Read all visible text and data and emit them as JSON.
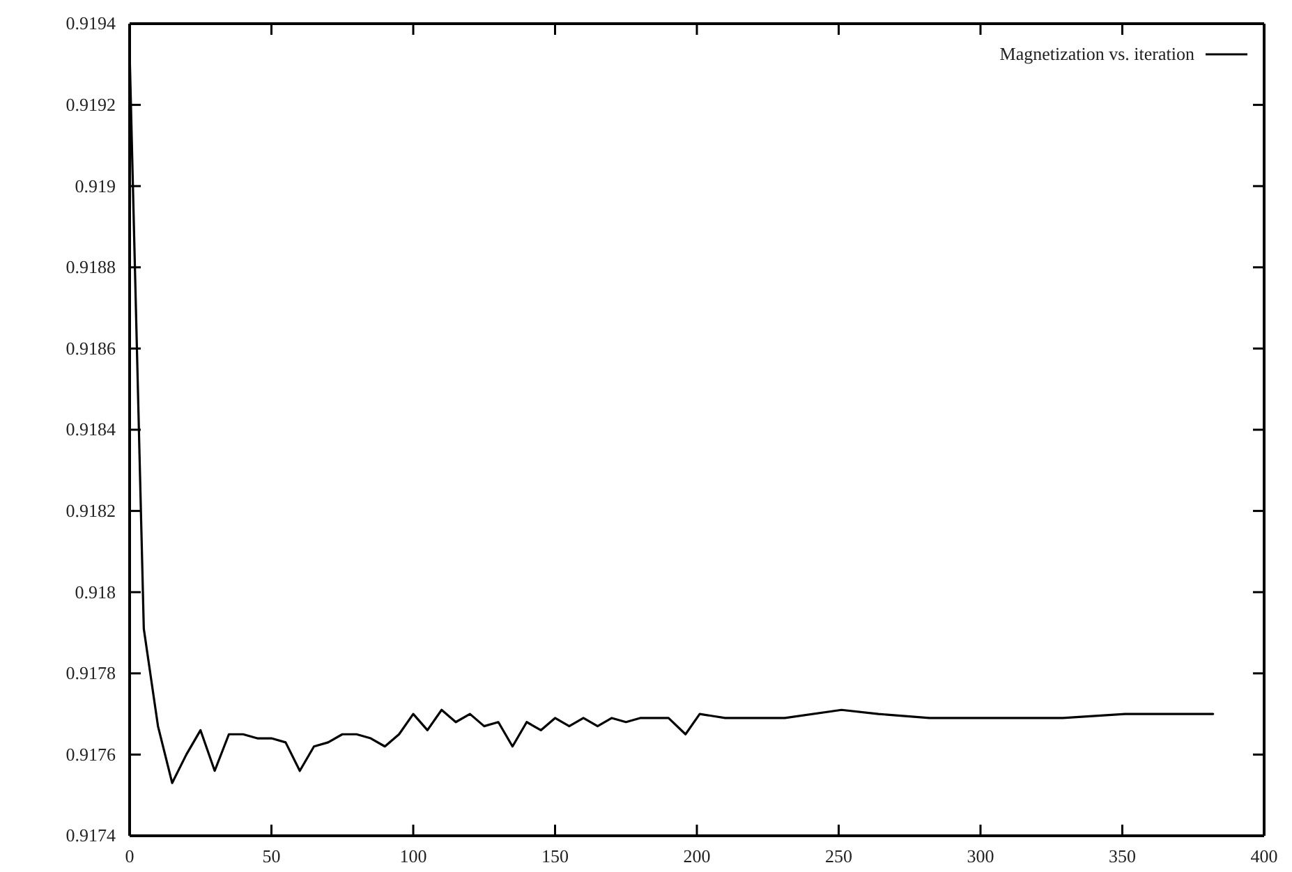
{
  "chart_data": {
    "type": "line",
    "legend": "top right",
    "grid": false,
    "line_style": "solid",
    "marker": "none",
    "xlim": [
      0,
      400
    ],
    "xticks": [
      0,
      50,
      100,
      150,
      200,
      250,
      300,
      350,
      400
    ],
    "ylim": [
      0.9174,
      0.9194
    ],
    "yticks": [
      0.9174,
      0.9176,
      0.9178,
      0.918,
      0.9182,
      0.9184,
      0.9186,
      0.9188,
      0.919,
      0.9192,
      0.9194
    ],
    "series": [
      {
        "name": "Magnetization vs. iteration",
        "color": "#000000",
        "x": [
          0,
          5,
          10,
          15,
          20,
          25,
          30,
          35,
          40,
          45,
          50,
          55,
          60,
          65,
          70,
          75,
          80,
          85,
          90,
          95,
          100,
          105,
          110,
          115,
          120,
          125,
          130,
          135,
          140,
          145,
          150,
          155,
          160,
          165,
          170,
          175,
          180,
          190,
          196,
          201,
          210,
          231,
          251,
          264,
          282,
          305,
          329,
          351,
          382
        ],
        "values": [
          0.91933,
          0.91791,
          0.91767,
          0.91753,
          0.9176,
          0.91766,
          0.91756,
          0.91765,
          0.91765,
          0.91764,
          0.91764,
          0.91763,
          0.91756,
          0.91762,
          0.91763,
          0.91765,
          0.91765,
          0.91764,
          0.91762,
          0.91765,
          0.9177,
          0.91766,
          0.91771,
          0.91768,
          0.9177,
          0.91767,
          0.91768,
          0.91762,
          0.91768,
          0.91766,
          0.91769,
          0.91767,
          0.91769,
          0.91767,
          0.91769,
          0.91768,
          0.91769,
          0.91769,
          0.91765,
          0.9177,
          0.91769,
          0.91769,
          0.91771,
          0.9177,
          0.91769,
          0.91769,
          0.91769,
          0.9177,
          0.9177
        ]
      }
    ]
  }
}
